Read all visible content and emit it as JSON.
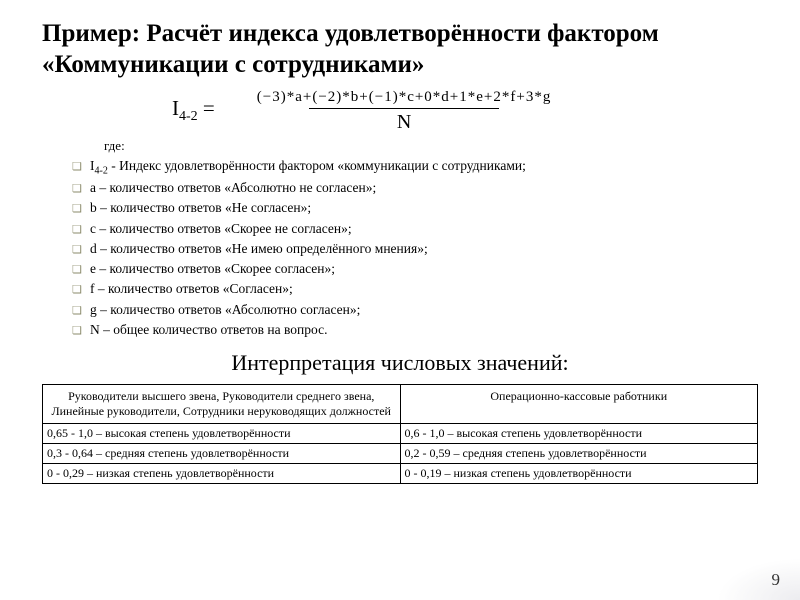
{
  "title": "Пример: Расчёт индекса удовлетворённости фактором «Коммуникации с сотрудниками»",
  "formula": {
    "lhs_symbol": "I",
    "lhs_sub": "4-2",
    "equals": "=",
    "numerator": "(−3)*a+(−2)*b+(−1)*c+0*d+1*e+2*f+3*g",
    "denominator": "N"
  },
  "where_label": "где:",
  "definitions": [
    {
      "pre": "I",
      "sub": "4-2",
      "post": " - Индекс удовлетворённости фактором «коммуникации с сотрудниками;"
    },
    {
      "pre": "a – количество ответов «Абсолютно не согласен»;",
      "sub": "",
      "post": ""
    },
    {
      "pre": "b – количество ответов «Не согласен»;",
      "sub": "",
      "post": ""
    },
    {
      "pre": "c – количество ответов «Скорее не согласен»;",
      "sub": "",
      "post": ""
    },
    {
      "pre": "d – количество ответов «Не имею определённого мнения»;",
      "sub": "",
      "post": ""
    },
    {
      "pre": "e – количество ответов «Скорее согласен»;",
      "sub": "",
      "post": ""
    },
    {
      "pre": "f – количество ответов «Согласен»;",
      "sub": "",
      "post": ""
    },
    {
      "pre": "g – количество ответов «Абсолютно согласен»;",
      "sub": "",
      "post": ""
    },
    {
      "pre": "N – общее количество ответов на вопрос.",
      "sub": "",
      "post": ""
    }
  ],
  "interp_title": "Интерпретация числовых значений:",
  "table": {
    "headers": [
      "Руководители высшего звена, Руководители среднего звена, Линейные руководители, Сотрудники неруководящих должностей",
      "Операционно-кассовые работники"
    ],
    "rows": [
      [
        "0,65 - 1,0 – высокая степень удовлетворённости",
        "0,6 - 1,0 – высокая степень удовлетворённости"
      ],
      [
        "0,3 - 0,64 – средняя степень удовлетворённости",
        "0,2 - 0,59 – средняя степень удовлетворённости"
      ],
      [
        "0 - 0,29 – низкая степень удовлетворённости",
        "0 - 0,19 – низкая степень удовлетворённости"
      ]
    ],
    "col_widths": [
      "50%",
      "50%"
    ]
  },
  "page_number": "9",
  "colors": {
    "text": "#000000",
    "bullet": "#8a8a6a",
    "background": "#ffffff",
    "border": "#000000"
  }
}
